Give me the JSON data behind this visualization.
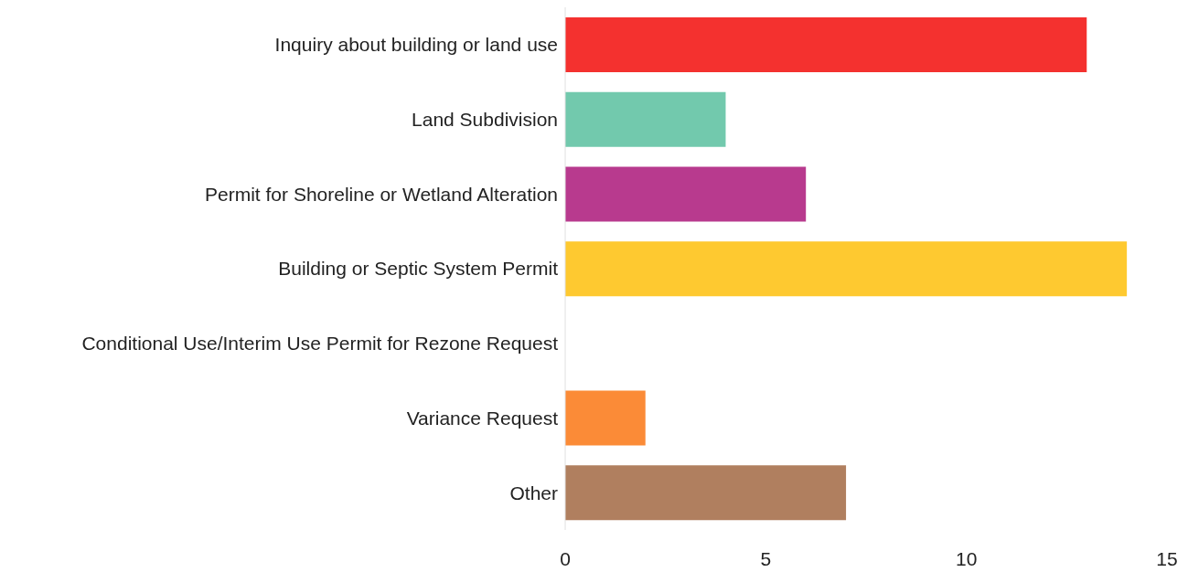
{
  "chart_data": {
    "type": "bar",
    "orientation": "horizontal",
    "categories": [
      "Inquiry about building or land use",
      "Land Subdivision",
      "Permit for Shoreline or Wetland Alteration",
      "Building or Septic System Permit",
      "Conditional Use/Interim Use Permit for Rezone Request",
      "Variance Request",
      "Other"
    ],
    "values": [
      13,
      4,
      6,
      14,
      0,
      2,
      7
    ],
    "colors": [
      "#f4312f",
      "#72c9ad",
      "#b83a8e",
      "#fec930",
      "#8c8c8c",
      "#fb8b37",
      "#b07f5f"
    ],
    "xlim": [
      0,
      15
    ],
    "xticks": [
      0,
      5,
      10,
      15
    ],
    "grid": false,
    "legend": false
  }
}
